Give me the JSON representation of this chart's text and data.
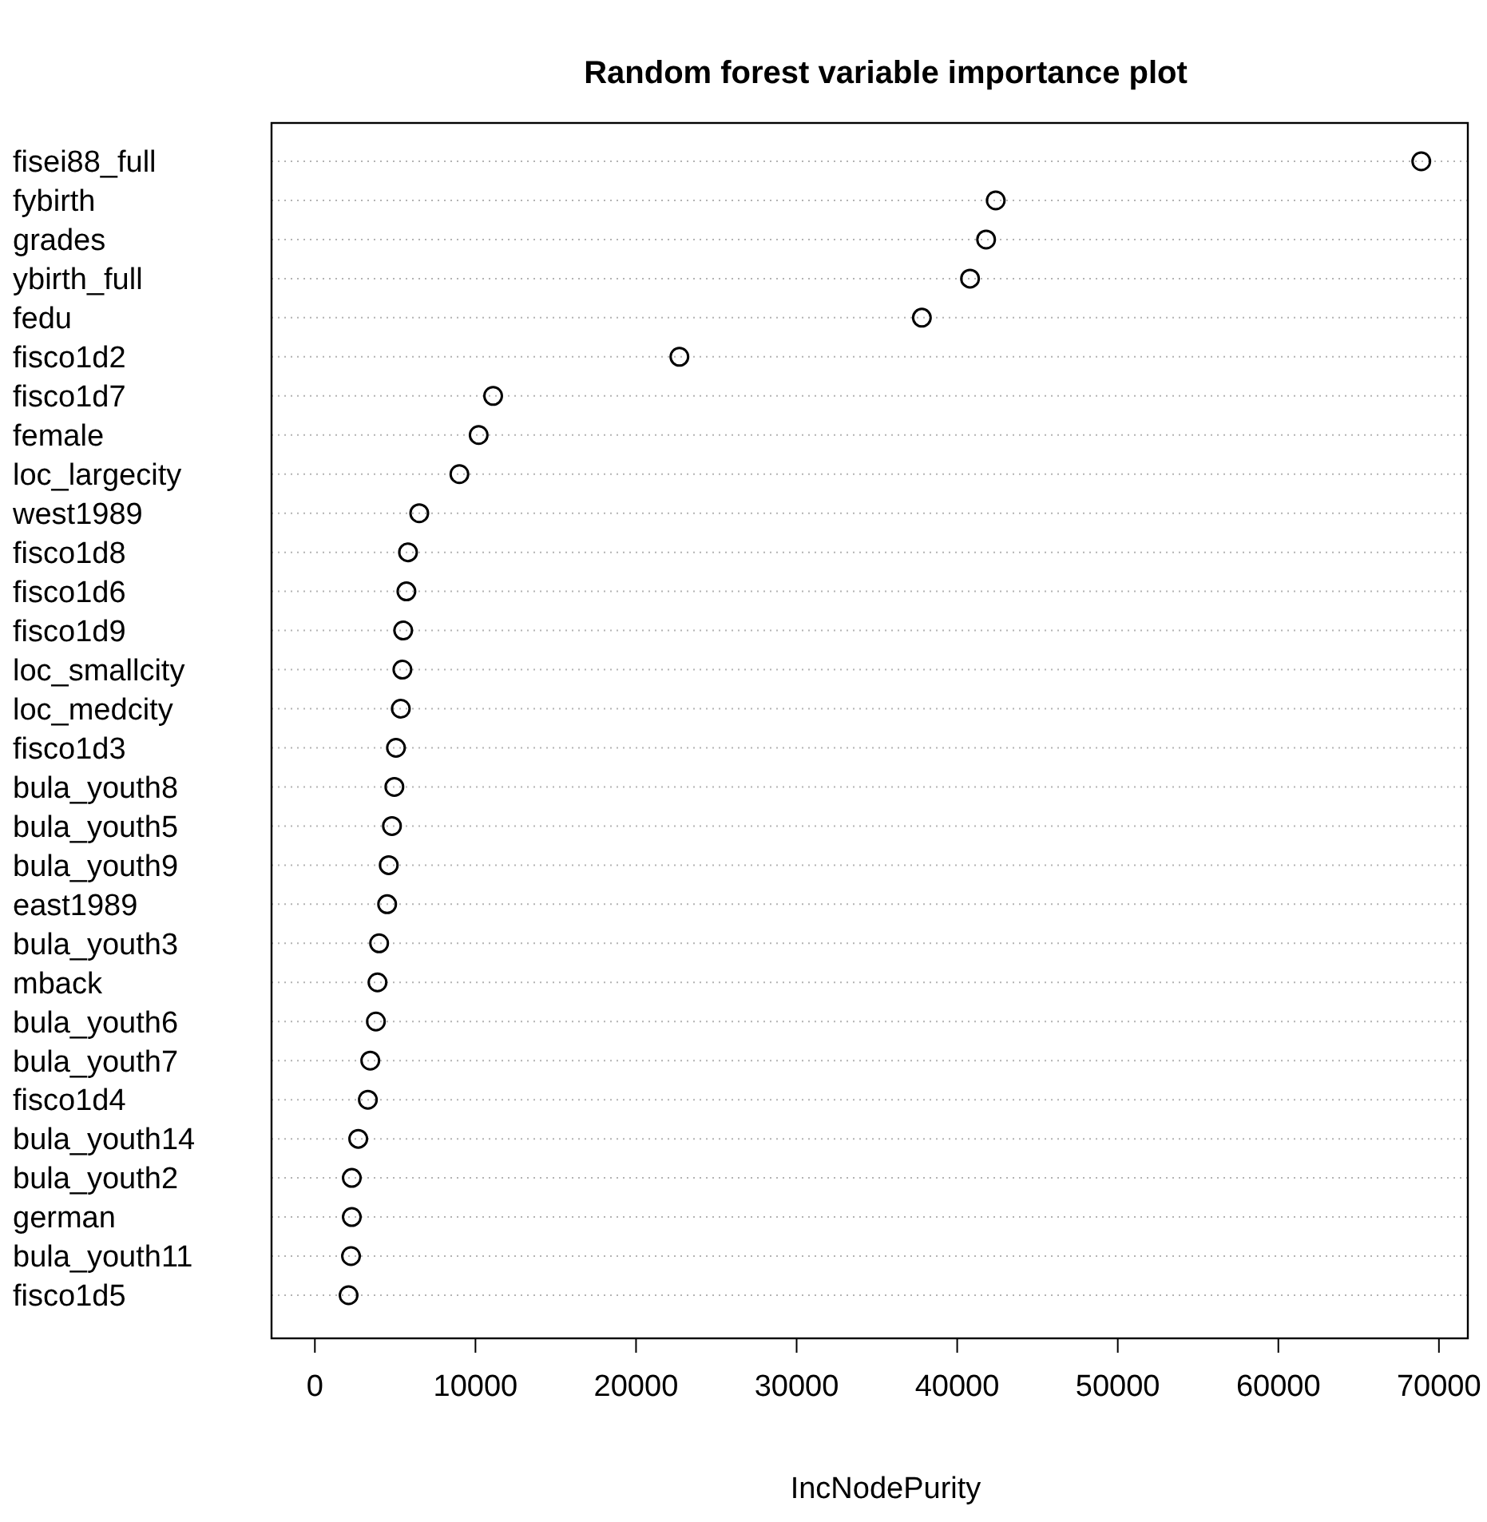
{
  "chart_data": {
    "type": "scatter",
    "orientation": "horizontal",
    "title": "Random forest variable importance plot",
    "xlabel": "IncNodePurity",
    "categories": [
      "fisei88_full",
      "fybirth",
      "grades",
      "ybirth_full",
      "fedu",
      "fisco1d2",
      "fisco1d7",
      "female",
      "loc_largecity",
      "west1989",
      "fisco1d8",
      "fisco1d6",
      "fisco1d9",
      "loc_smallcity",
      "loc_medcity",
      "fisco1d3",
      "bula_youth8",
      "bula_youth5",
      "bula_youth9",
      "east1989",
      "bula_youth3",
      "mback",
      "bula_youth6",
      "bula_youth7",
      "fisco1d4",
      "bula_youth14",
      "bula_youth2",
      "german",
      "bula_youth11",
      "fisco1d5"
    ],
    "values": [
      68900,
      42400,
      41800,
      40800,
      37800,
      22700,
      11100,
      10200,
      9000,
      6500,
      5800,
      5700,
      5500,
      5450,
      5350,
      5050,
      4950,
      4800,
      4600,
      4500,
      4000,
      3900,
      3800,
      3450,
      3300,
      2700,
      2300,
      2300,
      2250,
      2100
    ],
    "color": "#000000",
    "marker": "circle",
    "grid": "y",
    "xlim": [
      -2700,
      71800
    ],
    "xticks": [
      0,
      10000,
      20000,
      30000,
      40000,
      50000,
      60000,
      70000
    ]
  }
}
